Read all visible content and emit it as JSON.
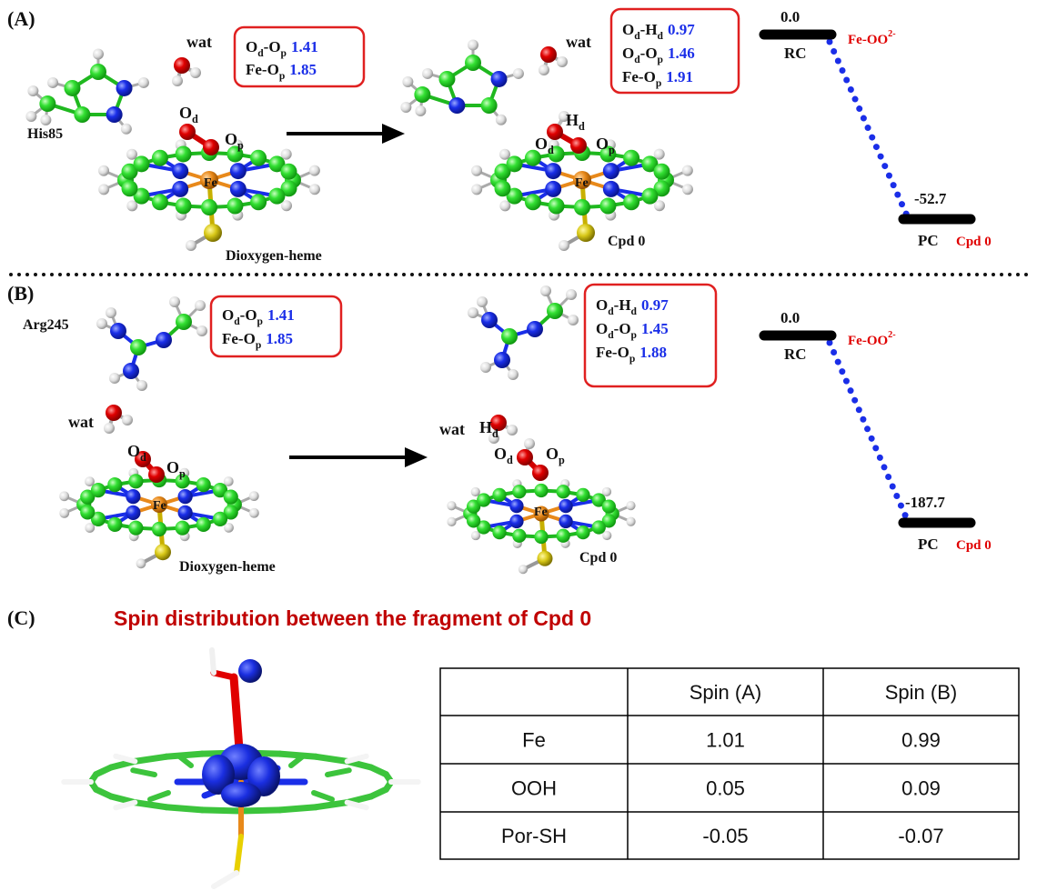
{
  "panels": [
    {
      "label": "(A)",
      "reactant": {
        "residue": "His85",
        "water": "wat",
        "od": [
          "O",
          "d"
        ],
        "op": [
          "O",
          "p"
        ],
        "fe": "Fe",
        "name": "Dioxygen-heme",
        "bonds": [
          {
            "label": [
              "O",
              "d",
              "-O",
              "p"
            ],
            "value": "1.41"
          },
          {
            "label": [
              "Fe-O",
              "p"
            ],
            "value": "1.85"
          }
        ]
      },
      "product": {
        "water": "wat",
        "hd": [
          "H",
          "d"
        ],
        "od": [
          "O",
          "d"
        ],
        "op": [
          "O",
          "p"
        ],
        "fe": "Fe",
        "name": "Cpd 0",
        "bonds": [
          {
            "label": [
              "O",
              "d",
              "-H",
              "d"
            ],
            "value": "0.97"
          },
          {
            "label": [
              "O",
              "d",
              "-O",
              "p"
            ],
            "value": "1.46"
          },
          {
            "label": [
              "Fe-O",
              "p"
            ],
            "value": "1.91"
          }
        ]
      },
      "energy": {
        "rc": {
          "value": "0.0",
          "label": "RC",
          "species": [
            "Fe-OO",
            "2-"
          ]
        },
        "pc": {
          "value": "-52.7",
          "label": "PC",
          "species": "Cpd 0"
        }
      }
    },
    {
      "label": "(B)",
      "reactant": {
        "residue": "Arg245",
        "water": "wat",
        "od": [
          "O",
          "d"
        ],
        "op": [
          "O",
          "p"
        ],
        "fe": "Fe",
        "name": "Dioxygen-heme",
        "bonds": [
          {
            "label": [
              "O",
              "d",
              "-O",
              "p"
            ],
            "value": "1.41"
          },
          {
            "label": [
              "Fe-O",
              "p"
            ],
            "value": "1.85"
          }
        ]
      },
      "product": {
        "water": "wat",
        "hd": [
          "H",
          "d"
        ],
        "od": [
          "O",
          "d"
        ],
        "op": [
          "O",
          "p"
        ],
        "fe": "Fe",
        "name": "Cpd 0",
        "bonds": [
          {
            "label": [
              "O",
              "d",
              "-H",
              "d"
            ],
            "value": "0.97"
          },
          {
            "label": [
              "O",
              "d",
              "-O",
              "p"
            ],
            "value": "1.45"
          },
          {
            "label": [
              "Fe-O",
              "p"
            ],
            "value": "1.88"
          }
        ]
      },
      "energy": {
        "rc": {
          "value": "0.0",
          "label": "RC",
          "species": [
            "Fe-OO",
            "2-"
          ]
        },
        "pc": {
          "value": "-187.7",
          "label": "PC",
          "species": "Cpd 0"
        }
      }
    }
  ],
  "panel_c": {
    "label": "(C)",
    "title": "Spin distribution between the fragment of Cpd 0",
    "table": {
      "header": [
        "Spin (A)",
        "Spin (B)"
      ],
      "rows": [
        [
          "Fe",
          "1.01",
          "0.99"
        ],
        [
          "OOH",
          "0.05",
          "0.09"
        ],
        [
          "Por-SH",
          "-0.05",
          "-0.07"
        ]
      ]
    }
  }
}
